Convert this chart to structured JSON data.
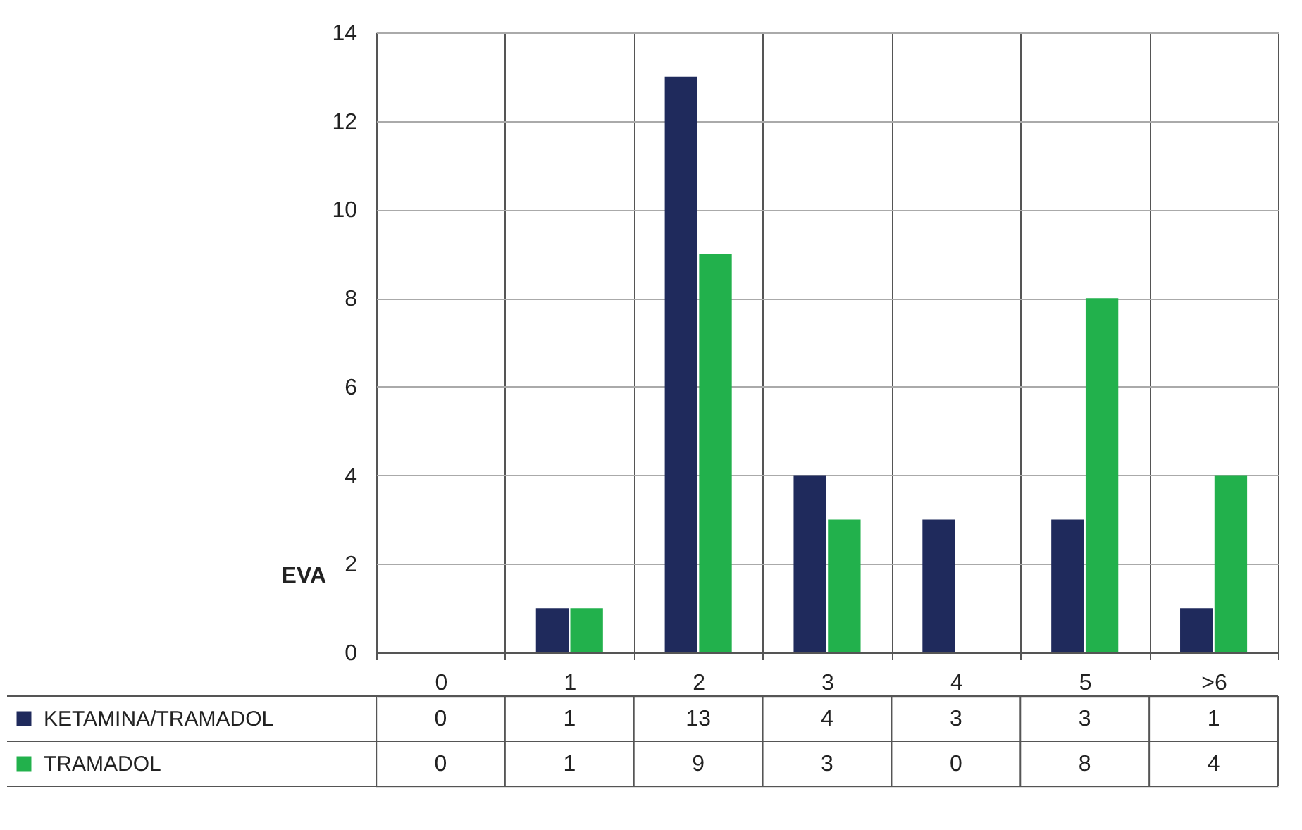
{
  "chart_data": {
    "type": "bar",
    "ylabel": "EVA",
    "categories": [
      "0",
      "1",
      "2",
      "3",
      "4",
      "5",
      ">6"
    ],
    "series": [
      {
        "name": "KETAMINA/TRAMADOL",
        "color": "#1f2a5c",
        "values": [
          0,
          1,
          13,
          4,
          3,
          3,
          1
        ]
      },
      {
        "name": "TRAMADOL",
        "color": "#22b14c",
        "values": [
          0,
          1,
          9,
          3,
          0,
          8,
          4
        ]
      }
    ],
    "ylim": [
      0,
      14
    ],
    "yticks": [
      0,
      2,
      4,
      6,
      8,
      10,
      12,
      14
    ],
    "grid": "y",
    "legend": "bottom left",
    "data_labels": true
  }
}
